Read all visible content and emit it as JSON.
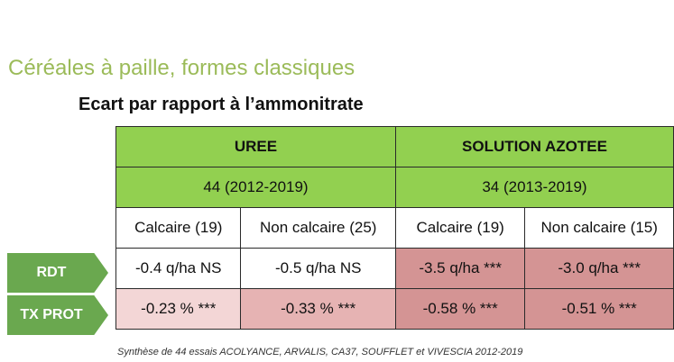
{
  "title": "Céréales à paille, formes classiques",
  "subtitle": "Ecart par rapport à l’ammonitrate",
  "groups": [
    {
      "name": "UREE",
      "trials": "44 (2012-2019)"
    },
    {
      "name": "SOLUTION AZOTEE",
      "trials": "34 (2013-2019)"
    }
  ],
  "columns": [
    "Calcaire (19)",
    "Non calcaire (25)",
    "Calcaire (19)",
    "Non calcaire (15)"
  ],
  "rows": [
    {
      "label": "RDT",
      "values": [
        "-0.4 q/ha NS",
        "-0.5 q/ha NS",
        "-3.5 q/ha ***",
        "-3.0 q/ha ***"
      ]
    },
    {
      "label": "TX PROT",
      "values": [
        "-0.23 % ***",
        "-0.33 % ***",
        "-0.58 % ***",
        "-0.51 % ***"
      ]
    }
  ],
  "colors": {
    "title": "#9bbb59",
    "header_green": "#92d050",
    "label_green": "#6aa84f",
    "light_pink": "#f3d6d6",
    "mid_pink": "#e6b3b3",
    "rose": "#d49494"
  },
  "footnote": "Synthèse de 44 essais ACOLYANCE, ARVALIS, CA37, SOUFFLET et VIVESCIA 2012-2019"
}
